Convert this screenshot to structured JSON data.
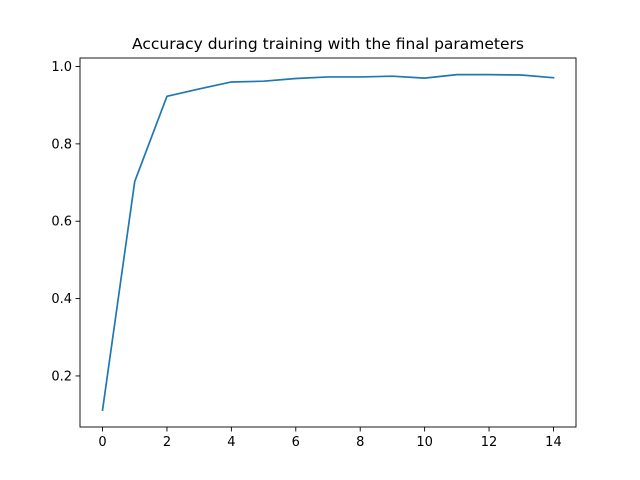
{
  "chart_data": {
    "type": "line",
    "title": "Accuracy during training with the final parameters",
    "xlabel": "",
    "ylabel": "",
    "xlim": [
      -0.7,
      14.7
    ],
    "ylim": [
      0.068,
      1.022
    ],
    "xticks": [
      0,
      2,
      4,
      6,
      8,
      10,
      12,
      14
    ],
    "yticks": [
      0.2,
      0.4,
      0.6,
      0.8,
      1.0
    ],
    "ytick_labels": [
      "0.2",
      "0.4",
      "0.6",
      "0.8",
      "1.0"
    ],
    "grid": false,
    "series": [
      {
        "color": "#1f77b4",
        "x": [
          0,
          1,
          2,
          3,
          4,
          5,
          6,
          7,
          8,
          9,
          10,
          11,
          12,
          13,
          14
        ],
        "y": [
          0.112,
          0.703,
          0.923,
          0.942,
          0.96,
          0.962,
          0.969,
          0.973,
          0.973,
          0.975,
          0.97,
          0.979,
          0.979,
          0.978,
          0.971
        ]
      }
    ]
  }
}
